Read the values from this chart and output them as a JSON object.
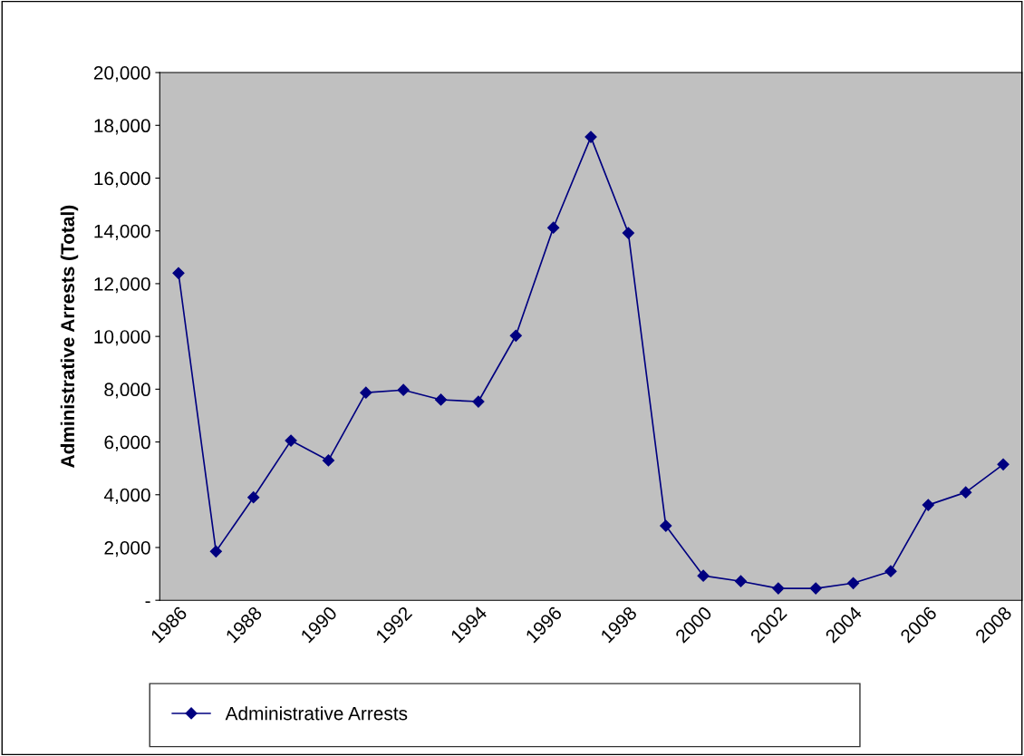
{
  "chart_data": {
    "type": "line",
    "ylabel": "Administrative Arrests (Total)",
    "categories": [
      "1986",
      null,
      "1988",
      null,
      "1990",
      null,
      "1992",
      null,
      "1994",
      null,
      "1996",
      null,
      "1998",
      null,
      "2000",
      null,
      "2002",
      null,
      "2004",
      null,
      "2006",
      null,
      "2008"
    ],
    "series": [
      {
        "name": "Administrative Arrests",
        "color": "#000080",
        "values": [
          12400,
          1850,
          3900,
          6050,
          5300,
          7870,
          7970,
          7600,
          7530,
          10030,
          14120,
          17560,
          13920,
          2820,
          930,
          720,
          450,
          450,
          650,
          1100,
          3610,
          4090,
          5150
        ]
      }
    ],
    "ylim": [
      0,
      20000
    ],
    "yticks": [
      {
        "value": 0,
        "label": "-"
      },
      {
        "value": 2000,
        "label": "2,000"
      },
      {
        "value": 4000,
        "label": "4,000"
      },
      {
        "value": 6000,
        "label": "6,000"
      },
      {
        "value": 8000,
        "label": "8,000"
      },
      {
        "value": 10000,
        "label": "10,000"
      },
      {
        "value": 12000,
        "label": "12,000"
      },
      {
        "value": 14000,
        "label": "14,000"
      },
      {
        "value": 16000,
        "label": "16,000"
      },
      {
        "value": 18000,
        "label": "18,000"
      },
      {
        "value": 20000,
        "label": "20,000"
      }
    ],
    "marker": "diamond",
    "line_style": "solid",
    "grid": false,
    "legend": "bottom"
  }
}
